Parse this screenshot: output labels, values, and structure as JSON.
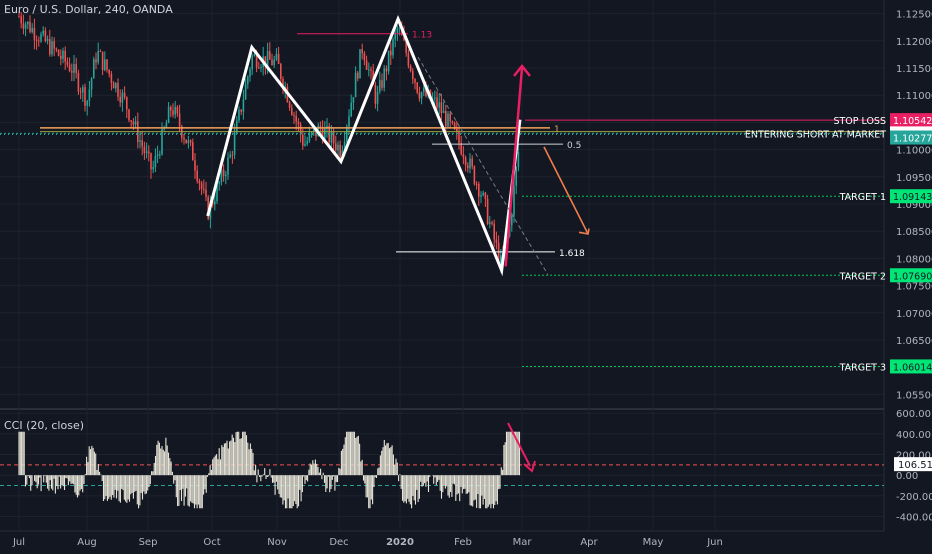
{
  "header": {
    "symbol_title": "Euro / U.S. Dollar, 240, OANDA",
    "indicator_title": "CCI (20, close)"
  },
  "colors": {
    "background": "#131722",
    "axis_text": "#b2b5be",
    "grid": "#1e222d",
    "pattern": "#ffffff",
    "up_arrow": "#e91e63",
    "down_arrow": "#ef7d4a",
    "stop": "#e91e63",
    "entry": "#26a69a",
    "target": "#00c853",
    "candle_up": "#26a69a",
    "candle_down": "#ef5350"
  },
  "chart_data": [
    {
      "type": "candlestick",
      "title": "Euro / U.S. Dollar, 240, OANDA",
      "x_ticks": [
        "Jul",
        "Aug",
        "Sep",
        "Oct",
        "Nov",
        "Dec",
        "2020",
        "Feb",
        "Mar",
        "Apr",
        "May",
        "Jun"
      ],
      "y_ticks": [
        1.125,
        1.12,
        1.115,
        1.11,
        1.105,
        1.1,
        1.095,
        1.09,
        1.085,
        1.08,
        1.075,
        1.07,
        1.065,
        1.06,
        1.055
      ],
      "ylim": [
        1.0525,
        1.1275
      ],
      "zigzag_pattern": [
        {
          "date": "Sep 29",
          "price": 1.0878
        },
        {
          "date": "Oct 20",
          "price": 1.1188
        },
        {
          "date": "Dec 02",
          "price": 1.0978
        },
        {
          "date": "Dec 31",
          "price": 1.124
        },
        {
          "date": "Feb 20",
          "price": 1.0778
        },
        {
          "date": "Feb 29",
          "price": 1.1055
        }
      ],
      "fib_levels": [
        {
          "label": "1.13",
          "price": 1.1213
        },
        {
          "label": "1",
          "price": 1.104
        },
        {
          "label": "0.5",
          "price": 1.101
        },
        {
          "label": "1.618",
          "price": 1.0812
        }
      ],
      "price_lines": [
        {
          "label": "STOP LOSS",
          "value": "1.10542",
          "price": 1.10542,
          "role": "stop"
        },
        {
          "label": "ENTERING SHORT AT MARKET",
          "value": "1.10298",
          "price": 1.10298,
          "role": "entry"
        },
        {
          "label": "",
          "value": "1.10277",
          "price": 1.10277,
          "role": "last"
        },
        {
          "label": "TARGET 1",
          "value": "1.09143",
          "price": 1.09143,
          "role": "target"
        },
        {
          "label": "TARGET 2",
          "value": "1.07690",
          "price": 1.0769,
          "role": "target"
        },
        {
          "label": "TARGET 3",
          "value": "1.06014",
          "price": 1.06014,
          "role": "target"
        }
      ]
    },
    {
      "type": "bar",
      "title": "CCI (20, close)",
      "y_ticks": [
        "600.00",
        "400.00",
        "200.00",
        "0.00",
        "-200.00",
        "-400.00"
      ],
      "ylim": [
        -530,
        630
      ],
      "reference_lines": [
        100,
        -100
      ],
      "last_value": "106.51"
    }
  ]
}
